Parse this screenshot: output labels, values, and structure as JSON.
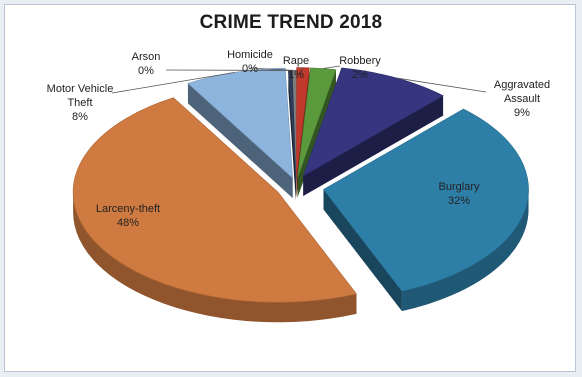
{
  "chart_data": {
    "type": "pie",
    "title": "CRIME TREND 2018",
    "categories": [
      "Homicide",
      "Rape",
      "Robbery",
      "Aggravated Assault",
      "Burglary",
      "Larceny-theft",
      "Motor Vehicle Theft",
      "Arson"
    ],
    "values": [
      0.3,
      1,
      2,
      9,
      32,
      48,
      8,
      0.3
    ],
    "data_labels": [
      "0%",
      "1%",
      "2%",
      "9%",
      "32%",
      "48%",
      "8%",
      "0%"
    ],
    "label_lines": {
      "Homicide": [
        "Homicide",
        "0%"
      ],
      "Rape": [
        "Rape",
        "1%"
      ],
      "Robbery": [
        "Robbery",
        "2%"
      ],
      "Aggravated Assault": [
        "Aggravated",
        "Assault",
        "9%"
      ],
      "Burglary": [
        "Burglary",
        "32%"
      ],
      "Larceny-theft": [
        "Larceny-theft",
        "48%"
      ],
      "Motor Vehicle Theft": [
        "Motor Vehicle",
        "Theft",
        "8%"
      ],
      "Arson": [
        "Arson",
        "0%"
      ]
    },
    "colors": {
      "Homicide": "#7f7f7f",
      "Rape": "#c0392b",
      "Robbery": "#5b9a3c",
      "Aggravated Assault": "#35367f",
      "Burglary": "#2e7fa8",
      "Larceny-theft": "#cf7a40",
      "Motor Vehicle Theft": "#8cb4dc",
      "Arson": "#2f3d5c"
    },
    "style": "3d-exploded",
    "legend": "none"
  }
}
